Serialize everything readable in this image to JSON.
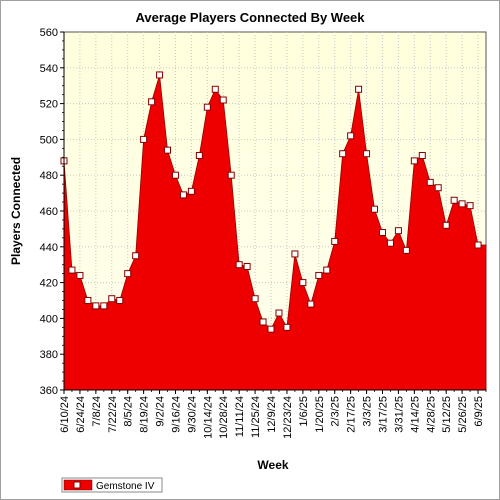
{
  "chart_data": {
    "type": "area",
    "title": "Average Players Connected By Week",
    "xlabel": "Week",
    "ylabel": "Players Connected",
    "ylim": [
      360,
      560
    ],
    "y_ticks": [
      360,
      380,
      400,
      420,
      440,
      460,
      480,
      500,
      520,
      540,
      560
    ],
    "x_tick_labels": [
      "6/10/24",
      "6/24/24",
      "7/8/24",
      "7/22/24",
      "8/5/24",
      "8/19/24",
      "9/2/24",
      "9/16/24",
      "9/30/24",
      "10/14/24",
      "10/28/24",
      "11/11/24",
      "11/25/24",
      "12/9/24",
      "12/23/24",
      "1/6/25",
      "1/20/25",
      "2/3/25",
      "2/17/25",
      "3/3/25",
      "3/17/25",
      "3/31/25",
      "4/14/25",
      "4/28/25",
      "5/12/25",
      "5/26/25",
      "6/9/25"
    ],
    "x": [
      "6/10/24",
      "6/17/24",
      "6/24/24",
      "7/1/24",
      "7/8/24",
      "7/15/24",
      "7/22/24",
      "7/29/24",
      "8/5/24",
      "8/12/24",
      "8/19/24",
      "8/26/24",
      "9/2/24",
      "9/9/24",
      "9/16/24",
      "9/23/24",
      "9/30/24",
      "10/7/24",
      "10/14/24",
      "10/21/24",
      "10/28/24",
      "11/4/24",
      "11/11/24",
      "11/18/24",
      "11/25/24",
      "12/2/24",
      "12/9/24",
      "12/16/24",
      "12/23/24",
      "12/30/24",
      "1/6/25",
      "1/13/25",
      "1/20/25",
      "1/27/25",
      "2/3/25",
      "2/10/25",
      "2/17/25",
      "2/24/25",
      "3/3/25",
      "3/10/25",
      "3/17/25",
      "3/24/25",
      "3/31/25",
      "4/7/25",
      "4/14/25",
      "4/21/25",
      "4/28/25",
      "5/5/25",
      "5/12/25",
      "5/19/25",
      "5/26/25",
      "6/2/25",
      "6/9/25",
      "6/16/25"
    ],
    "series": [
      {
        "name": "Gemstone IV",
        "color": "#ee0000",
        "values": [
          488,
          427,
          424,
          410,
          407,
          407,
          411,
          410,
          425,
          435,
          500,
          521,
          536,
          494,
          480,
          469,
          471,
          491,
          518,
          528,
          522,
          480,
          430,
          429,
          411,
          398,
          394,
          403,
          395,
          436,
          420,
          408,
          424,
          427,
          443,
          492,
          502,
          528,
          492,
          461,
          448,
          442,
          449,
          438,
          488,
          491,
          476,
          473,
          452,
          466,
          464,
          463,
          441,
          441
        ]
      }
    ],
    "grid": true,
    "legend": "bottom-left"
  }
}
